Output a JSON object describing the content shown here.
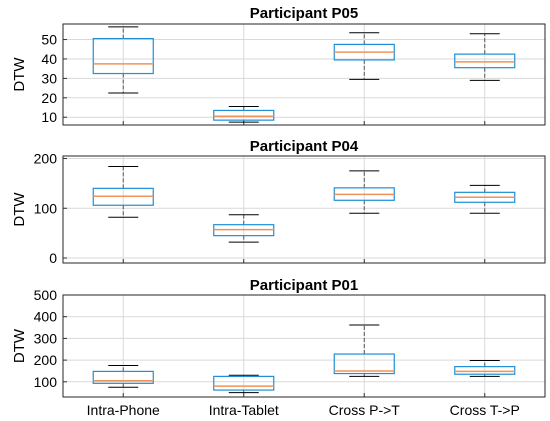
{
  "chart_data": [
    {
      "type": "box",
      "title": "Participant P05",
      "ylabel": "DTW",
      "ylim": [
        6,
        58
      ],
      "yticks": [
        10,
        20,
        30,
        40,
        50
      ],
      "categories": [
        "Intra-Phone",
        "Intra-Tablet",
        "Cross P->T",
        "Cross T->P"
      ],
      "boxes": [
        {
          "min": 22.5,
          "q1": 32.5,
          "median": 37.5,
          "q3": 50.5,
          "max": 56.5
        },
        {
          "min": 7.5,
          "q1": 8.5,
          "median": 10.5,
          "q3": 13.5,
          "max": 15.5
        },
        {
          "min": 29.5,
          "q1": 39.5,
          "median": 43.5,
          "q3": 47.5,
          "max": 53.5
        },
        {
          "min": 29.0,
          "q1": 35.5,
          "median": 38.5,
          "q3": 42.5,
          "max": 53.0
        }
      ],
      "grid": true
    },
    {
      "type": "box",
      "title": "Participant P04",
      "ylabel": "DTW",
      "ylim": [
        -10,
        205
      ],
      "yticks": [
        0,
        100,
        200
      ],
      "categories": [
        "Intra-Phone",
        "Intra-Tablet",
        "Cross P->T",
        "Cross T->P"
      ],
      "boxes": [
        {
          "min": 82,
          "q1": 106,
          "median": 124,
          "q3": 140,
          "max": 184
        },
        {
          "min": 32,
          "q1": 45,
          "median": 57,
          "q3": 67,
          "max": 87
        },
        {
          "min": 90,
          "q1": 116,
          "median": 128,
          "q3": 141,
          "max": 175
        },
        {
          "min": 90,
          "q1": 112,
          "median": 122,
          "q3": 132,
          "max": 146
        }
      ],
      "grid": true
    },
    {
      "type": "box",
      "title": "Participant P01",
      "ylabel": "DTW",
      "ylim": [
        30,
        500
      ],
      "yticks": [
        100,
        200,
        300,
        400,
        500
      ],
      "categories": [
        "Intra-Phone",
        "Intra-Tablet",
        "Cross P->T",
        "Cross T->P"
      ],
      "boxes": [
        {
          "min": 75,
          "q1": 93,
          "median": 105,
          "q3": 148,
          "max": 175
        },
        {
          "min": 50,
          "q1": 62,
          "median": 80,
          "q3": 125,
          "max": 130
        },
        {
          "min": 125,
          "q1": 138,
          "median": 150,
          "q3": 228,
          "max": 362
        },
        {
          "min": 125,
          "q1": 135,
          "median": 148,
          "q3": 170,
          "max": 198
        }
      ],
      "grid": true
    }
  ],
  "style": {
    "box_color": "#1f8fd6",
    "median_color": "#f0935a",
    "whisker_color": "#555555",
    "grid_color": "#d9d9d9"
  }
}
